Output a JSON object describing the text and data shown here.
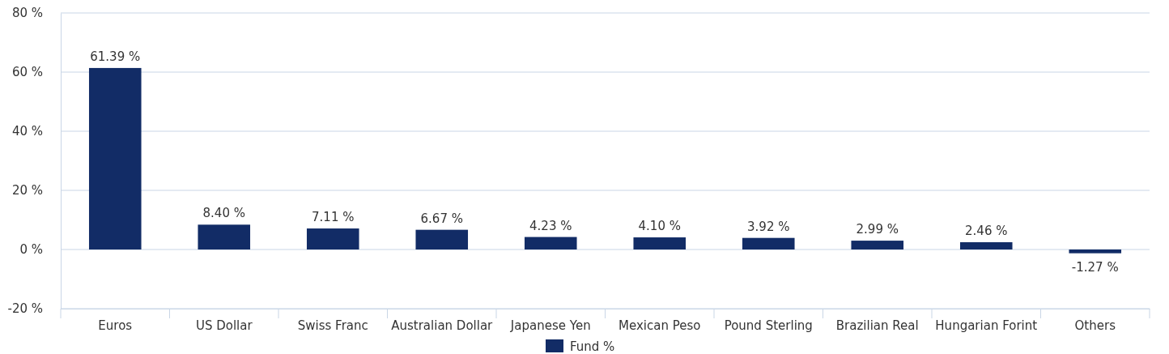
{
  "chart_data": {
    "type": "bar",
    "categories": [
      "Euros",
      "US Dollar",
      "Swiss Franc",
      "Australian Dollar",
      "Japanese Yen",
      "Mexican Peso",
      "Pound Sterling",
      "Brazilian Real",
      "Hungarian Forint",
      "Others"
    ],
    "series": [
      {
        "name": "Fund %",
        "color": "#122c66",
        "values": [
          61.39,
          8.4,
          7.11,
          6.67,
          4.23,
          4.1,
          3.92,
          2.99,
          2.46,
          -1.27
        ],
        "value_labels": [
          "61.39 %",
          "8.40 %",
          "7.11 %",
          "6.67 %",
          "4.23 %",
          "4.10 %",
          "3.92 %",
          "2.99 %",
          "2.46 %",
          "-1.27 %"
        ]
      }
    ],
    "ylim": [
      -20,
      80
    ],
    "yticks": [
      {
        "value": -20,
        "label": "-20 %"
      },
      {
        "value": 0,
        "label": "0 %"
      },
      {
        "value": 20,
        "label": "20 %"
      },
      {
        "value": 40,
        "label": "40 %"
      },
      {
        "value": 60,
        "label": "60 %"
      },
      {
        "value": 80,
        "label": "80 %"
      }
    ],
    "grid": "y",
    "legend": "bottom"
  }
}
